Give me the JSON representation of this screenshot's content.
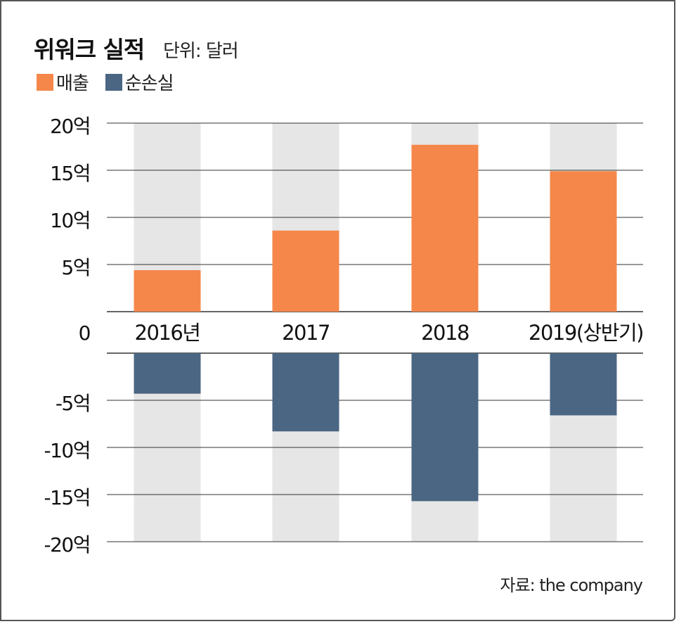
{
  "title": "위워크 실적",
  "unit_label": "단위: 달러",
  "source": "자료: the company",
  "colors": {
    "revenue": "#f5874a",
    "loss": "#4a6683",
    "column_bg": "#e6e6e6",
    "grid": "#333333"
  },
  "chart_data": {
    "type": "bar",
    "categories": [
      "2016년",
      "2017",
      "2018",
      "2019(상반기)"
    ],
    "series": [
      {
        "name": "매출",
        "values": [
          4.4,
          8.6,
          17.7,
          14.9
        ]
      },
      {
        "name": "순손실",
        "values": [
          -4.3,
          -8.3,
          -15.7,
          -6.6
        ]
      }
    ],
    "ylim": [
      -20,
      20
    ],
    "yticks_top": [
      {
        "value": 20,
        "label": "20억"
      },
      {
        "value": 15,
        "label": "15억"
      },
      {
        "value": 10,
        "label": "10억"
      },
      {
        "value": 5,
        "label": "5억"
      },
      {
        "value": 0,
        "label": "0"
      }
    ],
    "yticks_bottom": [
      {
        "value": -5,
        "label": "-5억"
      },
      {
        "value": -10,
        "label": "-10억"
      },
      {
        "value": -15,
        "label": "-15억"
      },
      {
        "value": -20,
        "label": "-20억"
      }
    ],
    "grid": true,
    "legend_position": "top-left"
  }
}
